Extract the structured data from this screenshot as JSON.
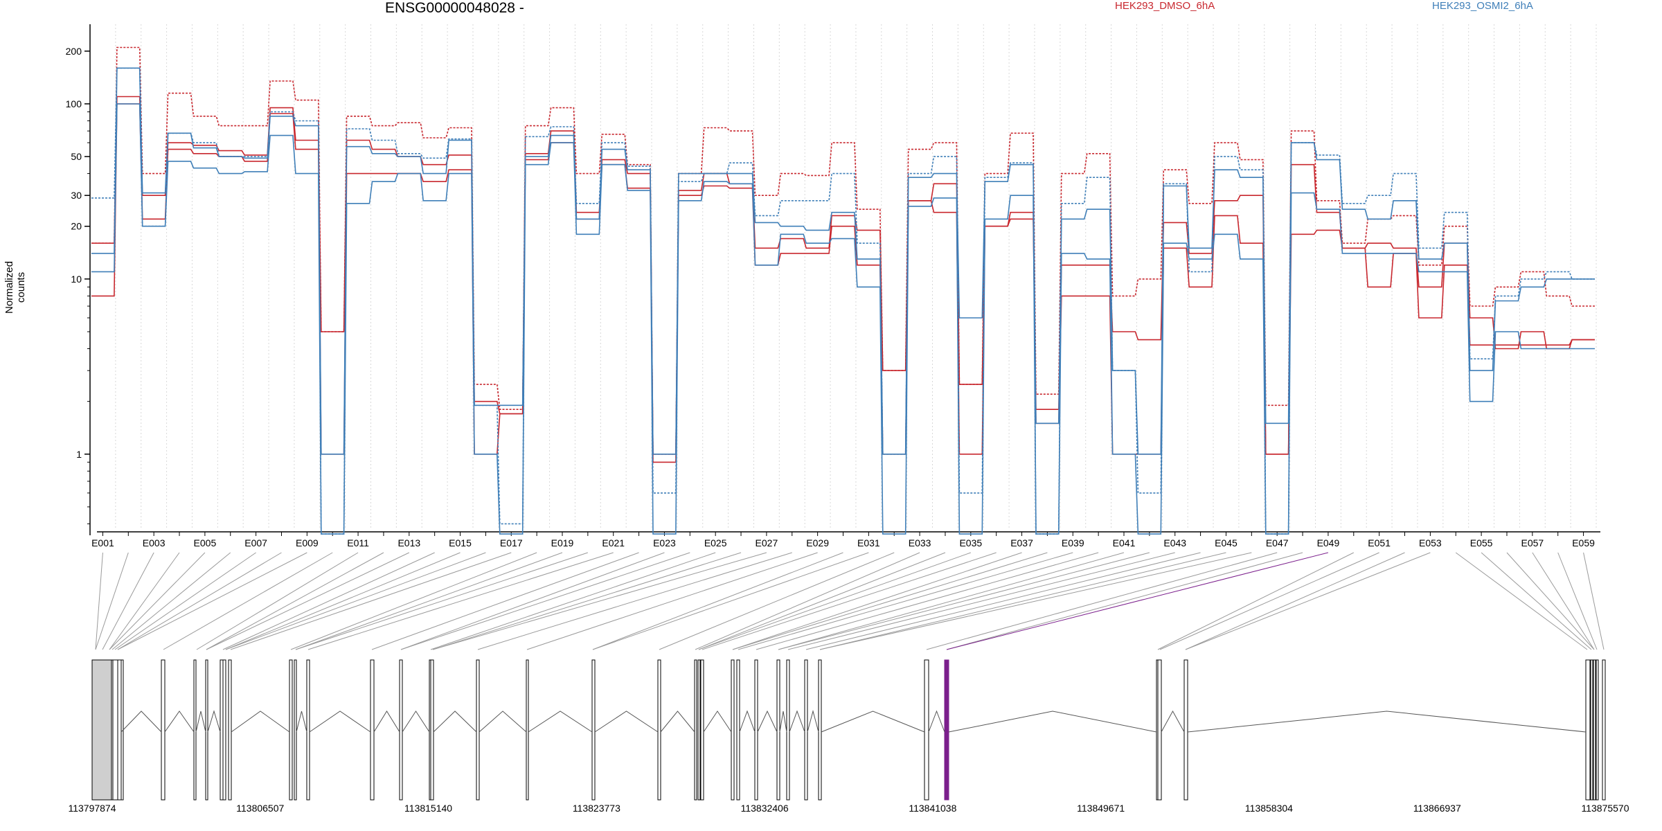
{
  "chart_data": {
    "type": "line",
    "title": "ENSG00000048028 -",
    "ylabel": "Normalized counts",
    "yscale": "log",
    "ylim": [
      0.37,
      260
    ],
    "yticks": [
      1,
      10,
      20,
      30,
      50,
      100,
      200
    ],
    "ytick_labels": [
      "1",
      "10",
      "20",
      "30",
      "50",
      "100",
      "200"
    ],
    "grid": "vertical dotted lines at exon boundaries",
    "legend": "top",
    "legend_entries": [
      {
        "name": "HEK293_DMSO_6hA",
        "color": "#c8272e"
      },
      {
        "name": "HEK293_OSMI2_6hA",
        "color": "#3f7fb8"
      }
    ],
    "exons": [
      "E001",
      "E002",
      "E003",
      "E004",
      "E005",
      "E006",
      "E007",
      "E008",
      "E009",
      "E010",
      "E011",
      "E012",
      "E013",
      "E014",
      "E015",
      "E016",
      "E017",
      "E018",
      "E019",
      "E020",
      "E021",
      "E022",
      "E023",
      "E024",
      "E025",
      "E026",
      "E027",
      "E028",
      "E029",
      "E030",
      "E031",
      "E032",
      "E033",
      "E034",
      "E035",
      "E036",
      "E037",
      "E038",
      "E039",
      "E040",
      "E041",
      "E042",
      "E043",
      "E044",
      "E045",
      "E046",
      "E047",
      "E048",
      "E049",
      "E050",
      "E051",
      "E052",
      "E053",
      "E054",
      "E055",
      "E056",
      "E057",
      "E058",
      "E059"
    ],
    "highlighted_exon": "E049",
    "series": [
      {
        "group": "DMSO",
        "color": "#c8272e",
        "dashed": true,
        "values": [
          16,
          210,
          40,
          115,
          85,
          75,
          75,
          135,
          105,
          5,
          85,
          75,
          78,
          64,
          73,
          2.5,
          1.8,
          75,
          95,
          40,
          67,
          45,
          1,
          40,
          73,
          70,
          30,
          40,
          39,
          60,
          25,
          3,
          55,
          60,
          2.5,
          40,
          68,
          2.2,
          40,
          52,
          8,
          10,
          42,
          27,
          60,
          48,
          1.9,
          70,
          28,
          16,
          22,
          23,
          12,
          20,
          7,
          9,
          11,
          8,
          7
        ]
      },
      {
        "group": "DMSO",
        "color": "#c8272e",
        "dashed": false,
        "values": [
          16,
          110,
          30,
          60,
          58,
          54,
          51,
          95,
          62,
          5,
          62,
          55,
          50,
          45,
          51,
          2,
          1.7,
          52,
          70,
          24,
          48,
          40,
          1,
          32,
          40,
          35,
          15,
          17,
          15,
          23,
          19,
          3,
          28,
          35,
          2.5,
          20,
          24,
          1.8,
          12,
          12,
          5,
          4.5,
          21,
          14,
          28,
          30,
          1,
          45,
          24,
          15,
          16,
          15,
          9,
          16,
          6,
          4,
          5,
          4,
          4.5
        ]
      },
      {
        "group": "DMSO",
        "color": "#c8272e",
        "dashed": false,
        "values": [
          8,
          100,
          22,
          55,
          52,
          50,
          47,
          88,
          55,
          1,
          40,
          40,
          40,
          36,
          42,
          1,
          1.7,
          48,
          60,
          22,
          45,
          33,
          0.9,
          30,
          34,
          33,
          12,
          14,
          14,
          20,
          12,
          1,
          28,
          24,
          1,
          20,
          22,
          1.5,
          8,
          8,
          1,
          1,
          15,
          9,
          23,
          16,
          1,
          18,
          19,
          15,
          9,
          14,
          6,
          12,
          4.2,
          4.2,
          4.2,
          4.2,
          4.5
        ]
      },
      {
        "group": "OSMI2",
        "color": "#3f7fb8",
        "dashed": true,
        "values": [
          29,
          160,
          20,
          68,
          60,
          50,
          50,
          90,
          80,
          0.35,
          72,
          62,
          52,
          49,
          63,
          1.9,
          0.4,
          65,
          74,
          27,
          60,
          44,
          0.6,
          36,
          40,
          46,
          23,
          28,
          28,
          40,
          16,
          1,
          40,
          50,
          0.6,
          38,
          46,
          0.35,
          27,
          38,
          3,
          0.6,
          35,
          11,
          50,
          42,
          0.35,
          60,
          51,
          27,
          30,
          40,
          15,
          24,
          3.5,
          8,
          10,
          11,
          10
        ]
      },
      {
        "group": "OSMI2",
        "color": "#3f7fb8",
        "dashed": false,
        "values": [
          14,
          160,
          31,
          68,
          56,
          50,
          49,
          85,
          75,
          1,
          57,
          52,
          50,
          40,
          62,
          1.9,
          1.9,
          50,
          66,
          22,
          55,
          42,
          1,
          40,
          40,
          40,
          21,
          20,
          19,
          24,
          13,
          1,
          38,
          40,
          6,
          36,
          45,
          1.5,
          22,
          25,
          3,
          1,
          34,
          15,
          42,
          38,
          1.5,
          60,
          48,
          25,
          22,
          28,
          13,
          16,
          3,
          7.5,
          9,
          10,
          10
        ]
      },
      {
        "group": "OSMI2",
        "color": "#3f7fb8",
        "dashed": false,
        "values": [
          11,
          100,
          20,
          47,
          43,
          40,
          41,
          66,
          40,
          0.35,
          27,
          36,
          40,
          28,
          40,
          1,
          0.35,
          45,
          60,
          18,
          45,
          32,
          0.35,
          28,
          36,
          35,
          12,
          18,
          16,
          17,
          9,
          0.35,
          26,
          29,
          0.35,
          22,
          30,
          0.35,
          14,
          13,
          1,
          0.35,
          16,
          13,
          18,
          13,
          0.35,
          31,
          25,
          14,
          14,
          14,
          11,
          11,
          2,
          5,
          4,
          4,
          4
        ]
      }
    ]
  },
  "gene_model": {
    "axis_labels": [
      "113797874",
      "113806507",
      "113815140",
      "113823773",
      "113832406",
      "113841038",
      "113849671",
      "113858304",
      "113866937",
      "113875570"
    ],
    "highlight_color": "#7b1f8c"
  }
}
